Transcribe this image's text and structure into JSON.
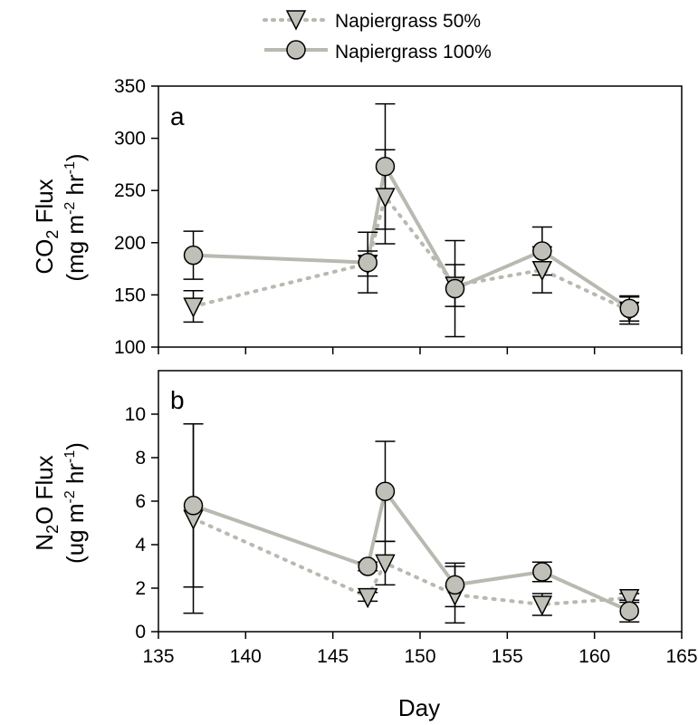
{
  "legend": {
    "series50_label": "Napiergrass 50%",
    "series100_label": "Napiergrass 100%"
  },
  "colors": {
    "marker_fill": "#c0c0b8",
    "line": "#b9b9b1",
    "errorbar": "#000000"
  },
  "xaxis": {
    "title": "Day",
    "range": [
      135,
      165
    ],
    "ticks": [
      135,
      140,
      145,
      150,
      155,
      160,
      165
    ]
  },
  "chart_data": [
    {
      "type": "line",
      "panel_label": "a",
      "ylabel_line1": "CO2 Flux",
      "ylabel_line2": "(mg m-2 hr-1)",
      "ylim": [
        100,
        350
      ],
      "yticks": [
        100,
        150,
        200,
        250,
        300,
        350
      ],
      "xlim": [
        135,
        165
      ],
      "x": [
        137,
        147,
        148,
        152,
        157,
        162
      ],
      "series": [
        {
          "name": "Napiergrass 50%",
          "marker": "triangle-down",
          "line_style": "dotted",
          "values": [
            139,
            180,
            244,
            159,
            174,
            135
          ],
          "error": [
            15,
            12,
            45,
            20,
            22,
            13
          ]
        },
        {
          "name": "Napiergrass 100%",
          "marker": "circle",
          "line_style": "solid",
          "values": [
            188,
            181,
            273,
            156,
            192,
            137
          ],
          "error": [
            23,
            29,
            60,
            46,
            23,
            12
          ]
        }
      ]
    },
    {
      "type": "line",
      "panel_label": "b",
      "ylabel_line1": "N2O Flux",
      "ylabel_line2": "(ug m-2 hr-1)",
      "ylim": [
        0,
        12
      ],
      "yticks": [
        0,
        2,
        4,
        6,
        8,
        10
      ],
      "xlim": [
        135,
        165
      ],
      "x": [
        137,
        147,
        148,
        152,
        157,
        162
      ],
      "series": [
        {
          "name": "Napiergrass 50%",
          "marker": "triangle-down",
          "line_style": "dotted",
          "values": [
            5.2,
            1.6,
            3.15,
            1.7,
            1.25,
            1.55
          ],
          "error": [
            4.35,
            0.2,
            1.0,
            1.3,
            0.5,
            0.2
          ]
        },
        {
          "name": "Napiergrass 100%",
          "marker": "circle",
          "line_style": "solid",
          "values": [
            5.8,
            3.0,
            6.45,
            2.15,
            2.75,
            0.95
          ],
          "error": [
            3.75,
            0.2,
            2.3,
            1.0,
            0.45,
            0.5
          ]
        }
      ]
    }
  ]
}
